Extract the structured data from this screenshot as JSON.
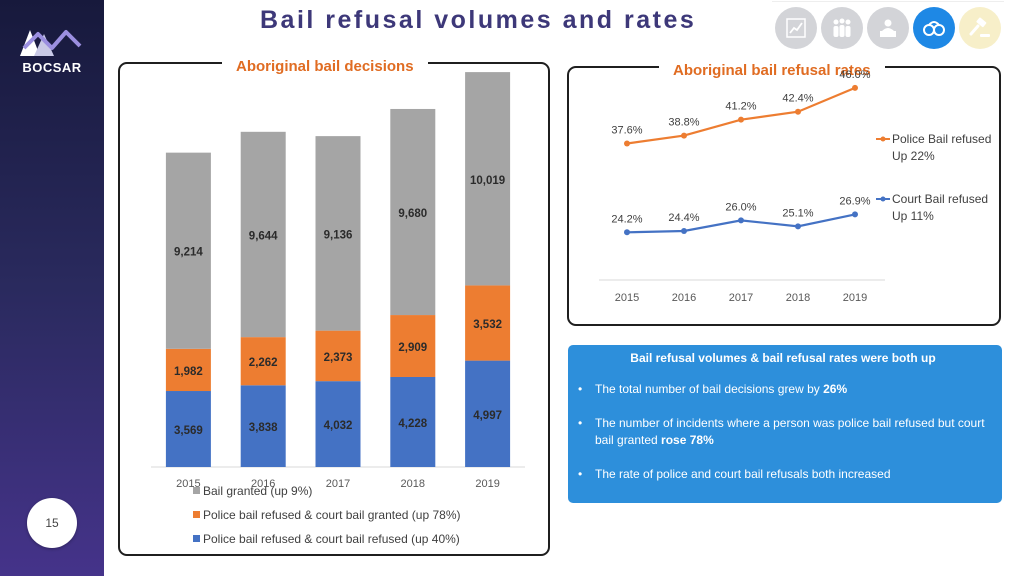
{
  "title": "Bail refusal volumes and rates",
  "brand": {
    "name": "BOCSAR"
  },
  "page_number": "15",
  "nav": [
    {
      "name": "chart-icon",
      "active": false
    },
    {
      "name": "people-icon",
      "active": false
    },
    {
      "name": "person-desk-icon",
      "active": false
    },
    {
      "name": "handcuffs-icon",
      "active": true
    },
    {
      "name": "gavel-icon",
      "active": false
    }
  ],
  "chart_data": [
    {
      "type": "bar",
      "stacked": true,
      "title": "Aboriginal bail decisions",
      "categories": [
        "2015",
        "2016",
        "2017",
        "2018",
        "2019"
      ],
      "series": [
        {
          "name": "Police bail refused & court bail refused (up 40%)",
          "color": "#4472c4",
          "values": [
            3569,
            3838,
            4032,
            4228,
            4997
          ],
          "labels": [
            "3,569",
            "3,838",
            "4,032",
            "4,228",
            "4,997"
          ]
        },
        {
          "name": "Police bail refused & court bail granted (up 78%)",
          "color": "#ed7d31",
          "values": [
            1982,
            2262,
            2373,
            2909,
            3532
          ],
          "labels": [
            "1,982",
            "2,262",
            "2,373",
            "2,909",
            "3,532"
          ]
        },
        {
          "name": "Bail granted (up 9%)",
          "color": "#a5a5a5",
          "values": [
            9214,
            9644,
            9136,
            9680,
            10019
          ],
          "labels": [
            "9,214",
            "9,644",
            "9,136",
            "9,680",
            "10,019"
          ]
        }
      ],
      "ylim": [
        0,
        18600
      ],
      "legend": "bottom"
    },
    {
      "type": "line",
      "title": "Aboriginal bail refusal rates",
      "x": [
        "2015",
        "2016",
        "2017",
        "2018",
        "2019"
      ],
      "series": [
        {
          "name": "Police Bail refused",
          "note": "Up 22%",
          "color": "#ed7d31",
          "values": [
            37.6,
            38.8,
            41.2,
            42.4,
            46.0
          ],
          "labels": [
            "37.6%",
            "38.8%",
            "41.2%",
            "42.4%",
            "46.0%"
          ]
        },
        {
          "name": "Court Bail refused",
          "note": "Up 11%",
          "color": "#4472c4",
          "values": [
            24.2,
            24.4,
            26.0,
            25.1,
            26.9
          ],
          "labels": [
            "24.2%",
            "24.4%",
            "26.0%",
            "25.1%",
            "26.9%"
          ]
        }
      ],
      "ylim": [
        17,
        49
      ],
      "legend": "right"
    }
  ],
  "summary": {
    "heading": "Bail refusal volumes & bail refusal rates were both up",
    "items": [
      {
        "text": "The total number of bail decisions grew by ",
        "bold": "26%",
        "after": ""
      },
      {
        "text": "The number of incidents where a person was police bail refused but court bail granted ",
        "bold": "rose 78%",
        "after": ""
      },
      {
        "text": "The rate of police and court bail refusals both increased",
        "bold": "",
        "after": ""
      }
    ]
  }
}
